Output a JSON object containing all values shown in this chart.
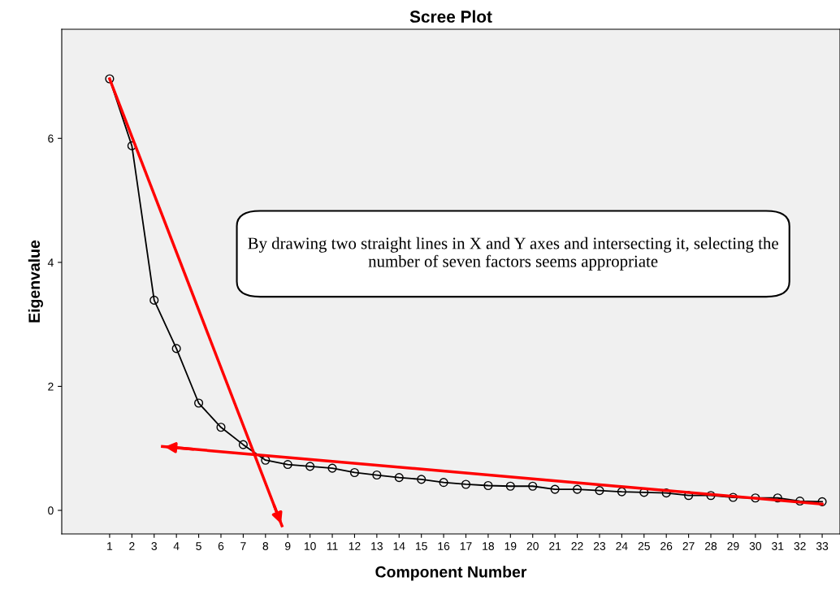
{
  "chart_data": {
    "type": "line",
    "title": "Scree Plot",
    "xlabel": "Component Number",
    "ylabel": "Eigenvalue",
    "xlim": [
      -1.15,
      33.8
    ],
    "ylim": [
      -0.38,
      7.76
    ],
    "xticks": [
      1,
      2,
      3,
      4,
      5,
      6,
      7,
      8,
      9,
      10,
      11,
      12,
      13,
      14,
      15,
      16,
      17,
      18,
      19,
      20,
      21,
      22,
      23,
      24,
      25,
      26,
      27,
      28,
      29,
      30,
      31,
      32,
      33
    ],
    "yticks": [
      0,
      2,
      4,
      6
    ],
    "grid": false,
    "marker": "circle",
    "line_style": "solid",
    "series": [
      {
        "color": "#000000",
        "x": [
          1,
          2,
          3,
          4,
          5,
          6,
          7,
          8,
          9,
          10,
          11,
          12,
          13,
          14,
          15,
          16,
          17,
          18,
          19,
          20,
          21,
          22,
          23,
          24,
          25,
          26,
          27,
          28,
          29,
          30,
          31,
          32,
          33
        ],
        "values": [
          6.96,
          5.88,
          3.39,
          2.61,
          1.73,
          1.34,
          1.06,
          0.81,
          0.74,
          0.71,
          0.68,
          0.61,
          0.57,
          0.53,
          0.5,
          0.45,
          0.42,
          0.4,
          0.39,
          0.39,
          0.34,
          0.34,
          0.32,
          0.3,
          0.29,
          0.28,
          0.24,
          0.24,
          0.21,
          0.2,
          0.2,
          0.15,
          0.14
        ]
      },
      {
        "type": "line",
        "color": "#ff0000",
        "marker": "none",
        "x": [
          1,
          8.74
        ],
        "values": [
          6.96,
          -0.25
        ]
      },
      {
        "type": "line",
        "color": "#ff0000",
        "marker": "none",
        "x": [
          33,
          3.37
        ],
        "values": [
          0.1,
          1.03
        ]
      }
    ],
    "annotations": [
      "By drawing two straight lines in X and Y axes and intersecting it, selecting the number of seven factors seems appropriate"
    ]
  }
}
